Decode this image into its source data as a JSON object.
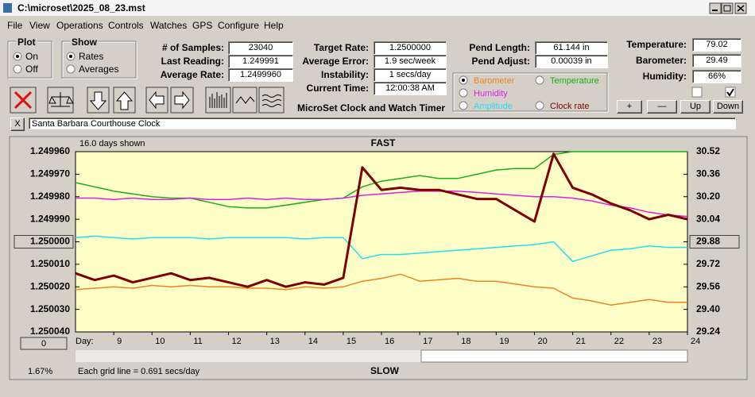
{
  "window": {
    "title": "C:\\microset\\2025_08_23.mst"
  },
  "menu": [
    "File",
    "View",
    "Operations",
    "Controls",
    "Watches",
    "GPS",
    "Configure",
    "Help"
  ],
  "plot_group": {
    "title": "Plot",
    "options": [
      "On",
      "Off"
    ]
  },
  "show_group": {
    "title": "Show",
    "options": [
      "Rates",
      "Averages"
    ]
  },
  "readings": [
    {
      "label": "# of Samples:",
      "value": "23040"
    },
    {
      "label": "Last Reading:",
      "value": "1.249991"
    },
    {
      "label": "Average Rate:",
      "value": "1.2499960"
    }
  ],
  "timing": [
    {
      "label": "Target Rate:",
      "value": "1.2500000"
    },
    {
      "label": "Average Error:",
      "value": "1.9 sec/week"
    },
    {
      "label": "Instability:",
      "value": "1 secs/day"
    },
    {
      "label": "Current Time:",
      "value": "12:00:38 AM"
    }
  ],
  "pendulum": [
    {
      "label": "Pend Length:",
      "value": "61.144 in"
    },
    {
      "label": "Pend Adjust:",
      "value": "0.00039 in"
    }
  ],
  "environment": [
    {
      "label": "Temperature:",
      "value": "79.02"
    },
    {
      "label": "Barometer:",
      "value": "29.49"
    },
    {
      "label": "Humidity:",
      "value": "66%"
    }
  ],
  "scale_buttons": [
    "+",
    "—",
    "Up",
    "Down"
  ],
  "app_name": "MicroSet Clock and Watch Timer",
  "close_button": "X",
  "clock_name": "Santa Barbara Courthouse Clock",
  "chart_data": {
    "type": "line",
    "title": "FAST",
    "bottom_label": "SLOW",
    "span_label": "16.0 days shown",
    "x_label": "Day:",
    "grid_note": "Each grid line = 0.691 secs/day",
    "zoom_label": "1.67%",
    "offset_button": "0",
    "xlim": [
      8,
      24
    ],
    "xticks": [
      9,
      10,
      11,
      12,
      13,
      14,
      15,
      16,
      17,
      18,
      19,
      20,
      21,
      22,
      23,
      24
    ],
    "ylim": [
      1.25004,
      1.24996
    ],
    "yticks": [
      {
        "value": 1.24996,
        "label": "1.249960"
      },
      {
        "value": 1.24997,
        "label": "1.249970"
      },
      {
        "value": 1.24998,
        "label": "1.249980"
      },
      {
        "value": 1.24999,
        "label": "1.249990"
      },
      {
        "value": 1.25,
        "label": "1.250000"
      },
      {
        "value": 1.25001,
        "label": "1.250010"
      },
      {
        "value": 1.25002,
        "label": "1.250020"
      },
      {
        "value": 1.25003,
        "label": "1.250030"
      },
      {
        "value": 1.25004,
        "label": "1.250040"
      }
    ],
    "y2lim": [
      29.24,
      30.52
    ],
    "y2ticks": [
      30.52,
      30.36,
      {
        "value": 30.2,
        "label": "30.20"
      },
      30.04,
      29.88,
      29.72,
      29.56,
      {
        "value": 29.4,
        "label": "29.40"
      },
      29.24
    ],
    "x": [
      8,
      8.5,
      9,
      9.5,
      10,
      10.5,
      11,
      11.5,
      12,
      12.5,
      13,
      13.5,
      14,
      14.5,
      15,
      15.5,
      16,
      16.5,
      17,
      17.5,
      18,
      18.5,
      19,
      19.5,
      20,
      20.5,
      21,
      21.5,
      22,
      22.5,
      23,
      23.5,
      24
    ],
    "series": [
      {
        "name": "Barometer",
        "color": "#f08418",
        "axis": "y2",
        "values": [
          29.54,
          29.55,
          29.56,
          29.55,
          29.57,
          29.56,
          29.57,
          29.56,
          29.56,
          29.55,
          29.55,
          29.54,
          29.56,
          29.55,
          29.56,
          29.6,
          29.62,
          29.65,
          29.6,
          29.61,
          29.62,
          29.6,
          29.6,
          29.58,
          29.56,
          29.55,
          29.48,
          29.46,
          29.43,
          29.45,
          29.47,
          29.45,
          29.45
        ]
      },
      {
        "name": "Temperature",
        "color": "#18b018",
        "axis": "y2",
        "values": [
          30.3,
          30.27,
          30.24,
          30.22,
          30.2,
          30.19,
          30.19,
          30.16,
          30.13,
          30.12,
          30.12,
          30.14,
          30.16,
          30.18,
          30.19,
          30.27,
          30.31,
          30.33,
          30.35,
          30.33,
          30.33,
          30.36,
          30.39,
          30.4,
          30.4,
          30.5,
          30.52,
          30.52,
          30.52,
          30.52,
          30.52,
          30.52,
          30.52
        ]
      },
      {
        "name": "Humidity",
        "color": "#e020e0",
        "axis": "y2",
        "values": [
          30.19,
          30.19,
          30.18,
          30.19,
          30.18,
          30.18,
          30.19,
          30.18,
          30.18,
          30.19,
          30.18,
          30.19,
          30.18,
          30.18,
          30.19,
          30.21,
          30.22,
          30.23,
          30.24,
          30.24,
          30.24,
          30.23,
          30.22,
          30.21,
          30.2,
          30.2,
          30.19,
          30.17,
          30.14,
          30.12,
          30.09,
          30.07,
          30.06
        ]
      },
      {
        "name": "Amplitude",
        "color": "#20e0f0",
        "axis": "y2",
        "values": [
          29.91,
          29.92,
          29.91,
          29.9,
          29.91,
          29.91,
          29.91,
          29.9,
          29.91,
          29.91,
          29.91,
          29.91,
          29.9,
          29.91,
          29.91,
          29.76,
          29.79,
          29.79,
          29.8,
          29.81,
          29.82,
          29.83,
          29.84,
          29.85,
          29.86,
          29.88,
          29.74,
          29.78,
          29.82,
          29.83,
          29.85,
          29.84,
          29.84
        ]
      },
      {
        "name": "Clock rate",
        "color": "#800000",
        "axis": "y",
        "values": [
          1.250014,
          1.250017,
          1.250015,
          1.250018,
          1.250016,
          1.250014,
          1.250017,
          1.250016,
          1.250018,
          1.25002,
          1.250017,
          1.25002,
          1.250018,
          1.250019,
          1.250016,
          1.249967,
          1.249977,
          1.249976,
          1.249977,
          1.249977,
          1.249979,
          1.249981,
          1.249981,
          1.249986,
          1.249991,
          1.249961,
          1.249976,
          1.249979,
          1.249983,
          1.249986,
          1.24999,
          1.249988,
          1.24999
        ]
      }
    ]
  }
}
